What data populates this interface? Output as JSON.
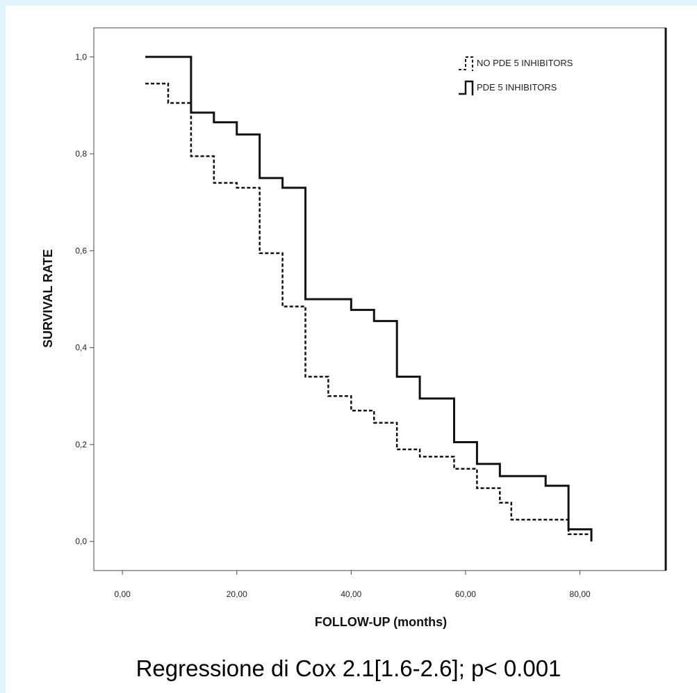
{
  "caption": "Regressione di Cox 2.1[1.6-2.6]; p< 0.001",
  "chart_data": {
    "type": "line",
    "step": true,
    "xlabel": "FOLLOW-UP (months)",
    "ylabel": "SURVIVAL RATE",
    "xlim": [
      -5,
      95
    ],
    "ylim": [
      -0.06,
      1.06
    ],
    "x_ticks": [
      0,
      20,
      40,
      60,
      80
    ],
    "x_tick_labels": [
      "0,00",
      "20,00",
      "40,00",
      "60,00",
      "80,00"
    ],
    "y_ticks": [
      0,
      0.2,
      0.4,
      0.6,
      0.8,
      1.0
    ],
    "y_tick_labels": [
      "0,0",
      "0,2",
      "0,4",
      "0,6",
      "0,8",
      "1,0"
    ],
    "grid": false,
    "legend_position": "top-right",
    "series": [
      {
        "name": "NO PDE 5 INHIBITORS",
        "style": "dashed",
        "color": "#111111",
        "x": [
          4,
          8,
          12,
          16,
          20,
          24,
          28,
          32,
          36,
          40,
          44,
          48,
          52,
          58,
          62,
          66,
          68,
          78,
          82
        ],
        "y": [
          0.945,
          0.905,
          0.795,
          0.74,
          0.73,
          0.595,
          0.485,
          0.34,
          0.3,
          0.27,
          0.245,
          0.19,
          0.175,
          0.15,
          0.11,
          0.08,
          0.045,
          0.015,
          0.005
        ]
      },
      {
        "name": "PDE 5 INHIBITORS",
        "style": "solid",
        "color": "#111111",
        "x": [
          4,
          12,
          16,
          20,
          24,
          28,
          32,
          40,
          44,
          48,
          52,
          58,
          62,
          66,
          74,
          78,
          82
        ],
        "y": [
          1.0,
          0.885,
          0.865,
          0.84,
          0.75,
          0.73,
          0.5,
          0.478,
          0.455,
          0.34,
          0.295,
          0.205,
          0.16,
          0.135,
          0.115,
          0.025,
          0.0
        ]
      }
    ]
  }
}
